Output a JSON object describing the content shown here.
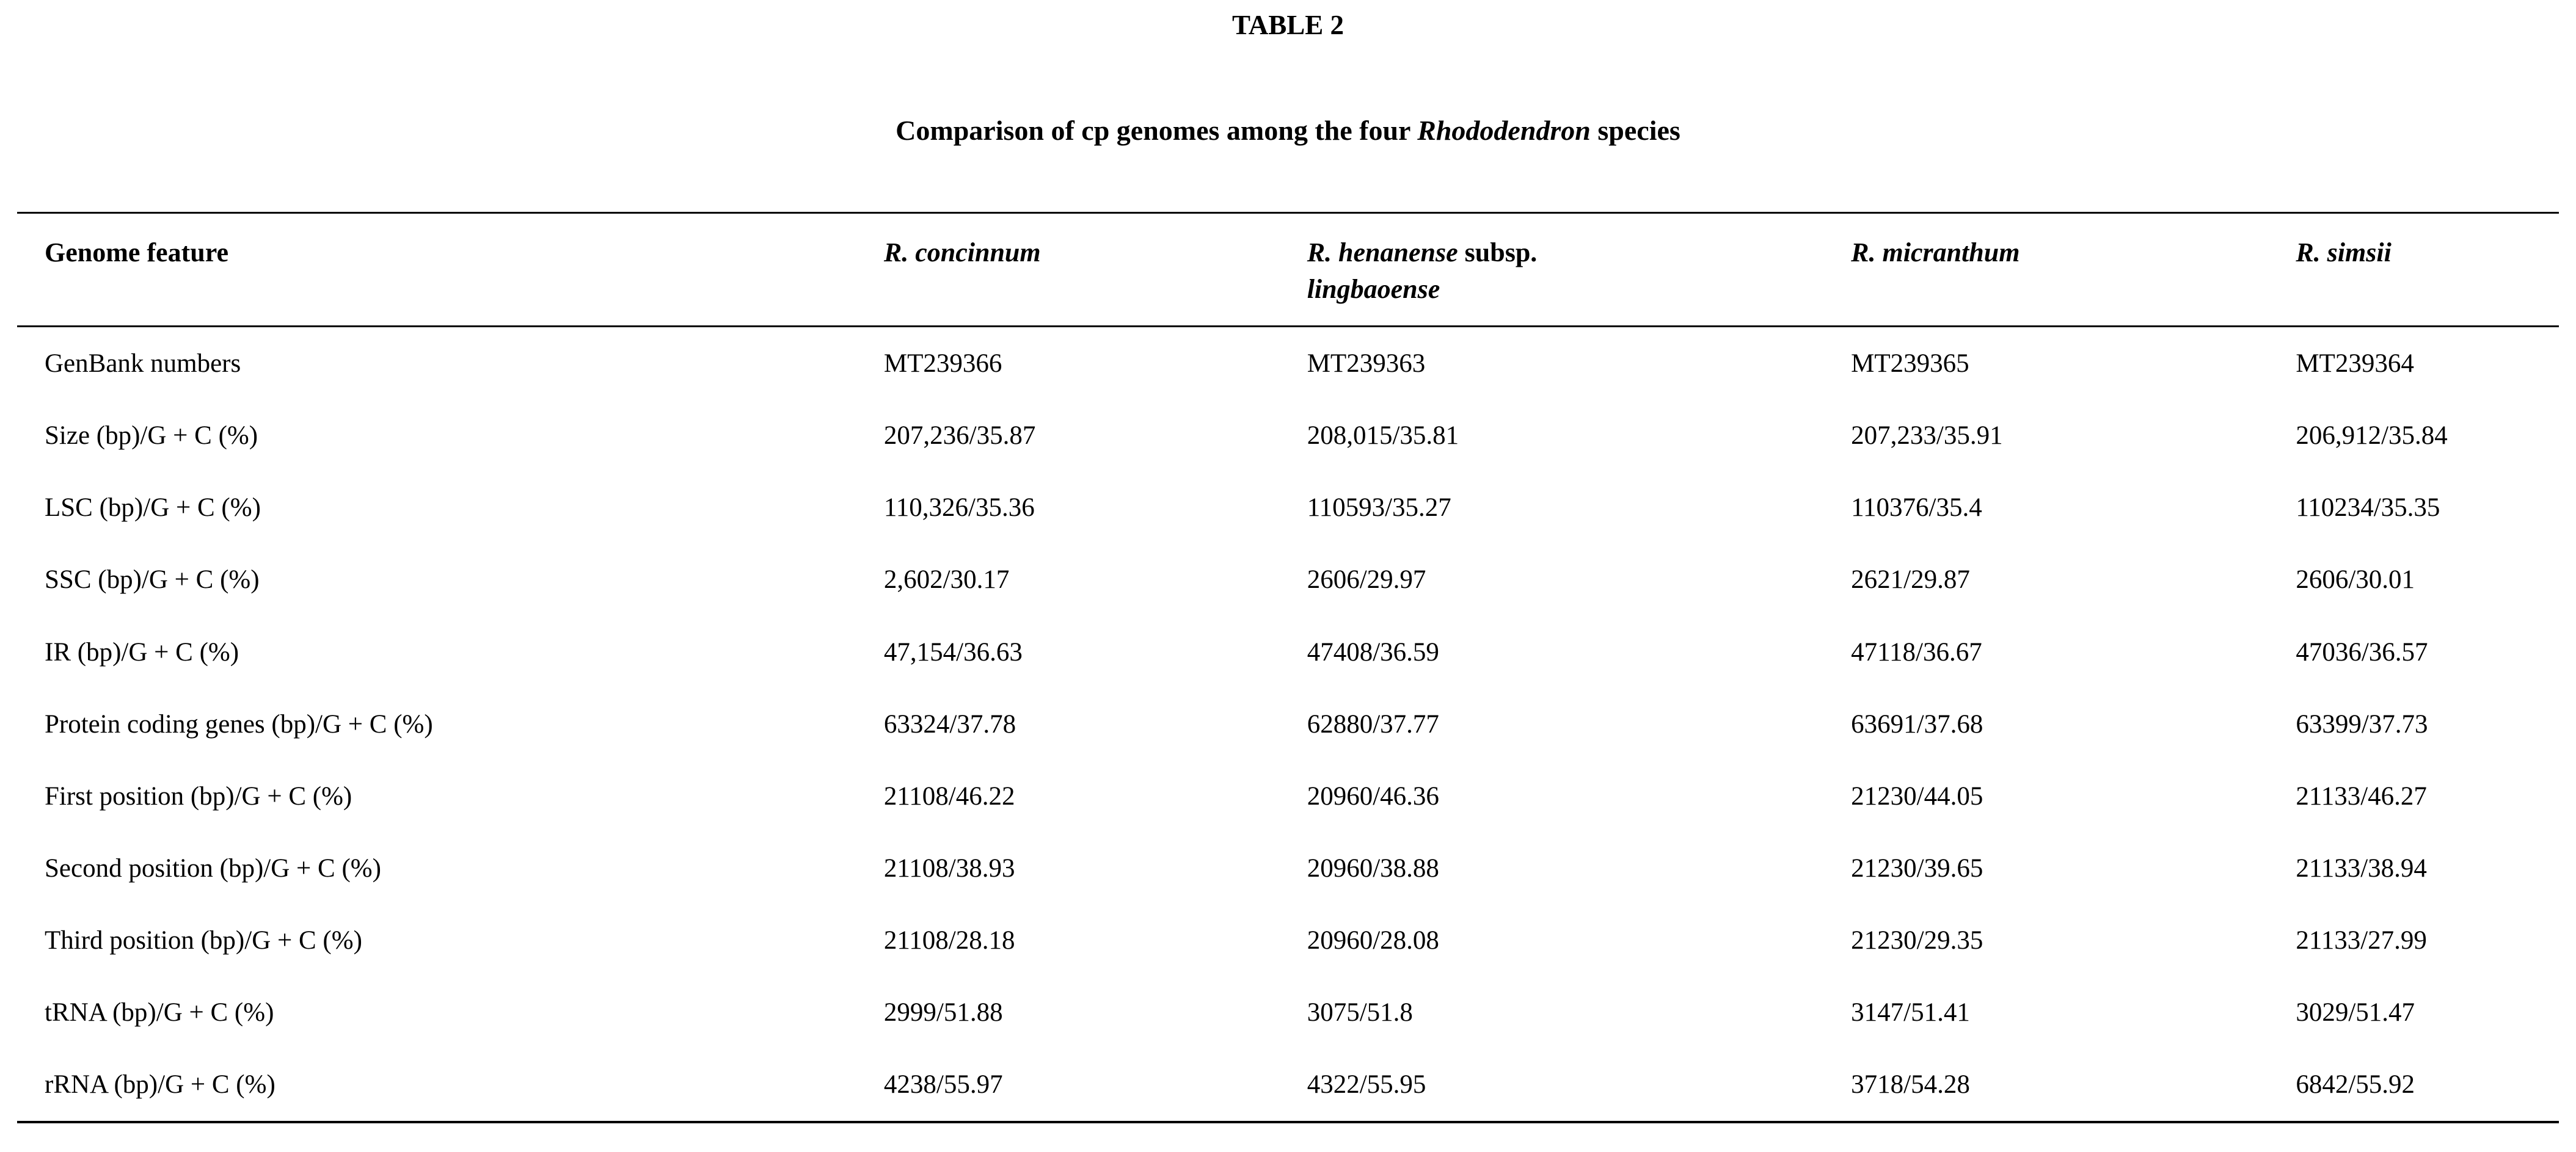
{
  "table": {
    "label": "TABLE 2",
    "title": {
      "prefix": "Comparison of cp genomes among the four ",
      "genus": "Rhododendron",
      "suffix": " species"
    },
    "columns": {
      "feature": "Genome feature",
      "concinnum": "R. concinnum",
      "henanense_name": "R. henanense",
      "henanense_rank": " subsp.",
      "henanense_subname": "lingbaoense",
      "micranthum": "R. micranthum",
      "simsii": "R. simsii"
    },
    "rows": [
      {
        "feature": "GenBank numbers",
        "values": [
          "MT239366",
          "MT239363",
          "MT239365",
          "MT239364"
        ]
      },
      {
        "feature": "Size (bp)/G + C (%)",
        "values": [
          "207,236/35.87",
          "208,015/35.81",
          "207,233/35.91",
          "206,912/35.84"
        ]
      },
      {
        "feature": "LSC (bp)/G + C (%)",
        "values": [
          "110,326/35.36",
          "110593/35.27",
          "110376/35.4",
          "110234/35.35"
        ]
      },
      {
        "feature": "SSC (bp)/G + C (%)",
        "values": [
          "2,602/30.17",
          "2606/29.97",
          "2621/29.87",
          "2606/30.01"
        ]
      },
      {
        "feature": "IR (bp)/G + C (%)",
        "values": [
          "47,154/36.63",
          "47408/36.59",
          "47118/36.67",
          "47036/36.57"
        ]
      },
      {
        "feature": "Protein coding genes (bp)/G + C (%)",
        "values": [
          "63324/37.78",
          "62880/37.77",
          "63691/37.68",
          "63399/37.73"
        ]
      },
      {
        "feature": "First position (bp)/G + C (%)",
        "values": [
          "21108/46.22",
          "20960/46.36",
          "21230/44.05",
          "21133/46.27"
        ]
      },
      {
        "feature": "Second position (bp)/G + C (%)",
        "values": [
          "21108/38.93",
          "20960/38.88",
          "21230/39.65",
          "21133/38.94"
        ]
      },
      {
        "feature": "Third position (bp)/G + C (%)",
        "values": [
          "21108/28.18",
          "20960/28.08",
          "21230/29.35",
          "21133/27.99"
        ]
      },
      {
        "feature": "tRNA (bp)/G + C (%)",
        "values": [
          "2999/51.88",
          "3075/51.8",
          "3147/51.41",
          "3029/51.47"
        ]
      },
      {
        "feature": "rRNA (bp)/G + C (%)",
        "values": [
          "4238/55.97",
          "4322/55.95",
          "3718/54.28",
          "6842/55.92"
        ]
      }
    ]
  }
}
